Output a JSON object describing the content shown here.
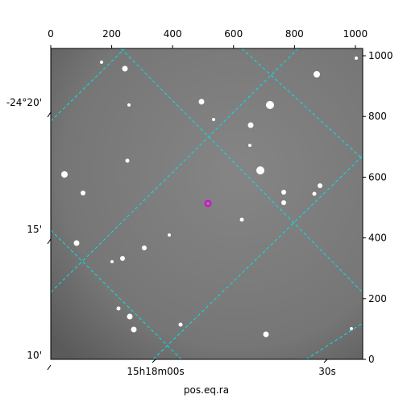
{
  "chart_data": {
    "type": "image",
    "x_label": "pos.eq.ra",
    "pixel_xlim": [
      0,
      1024
    ],
    "pixel_ylim": [
      0,
      1024
    ],
    "xticks": [
      0,
      200,
      400,
      600,
      800,
      1000
    ],
    "yticks": [
      0,
      200,
      400,
      600,
      800,
      1000
    ],
    "dec_ticks": [
      "-24°20'",
      "15'",
      "10'"
    ],
    "ra_ticks": [
      "15h18m00s",
      "30s"
    ],
    "grid_color": "#00e5e5",
    "marker_color": "#e000e0"
  }
}
